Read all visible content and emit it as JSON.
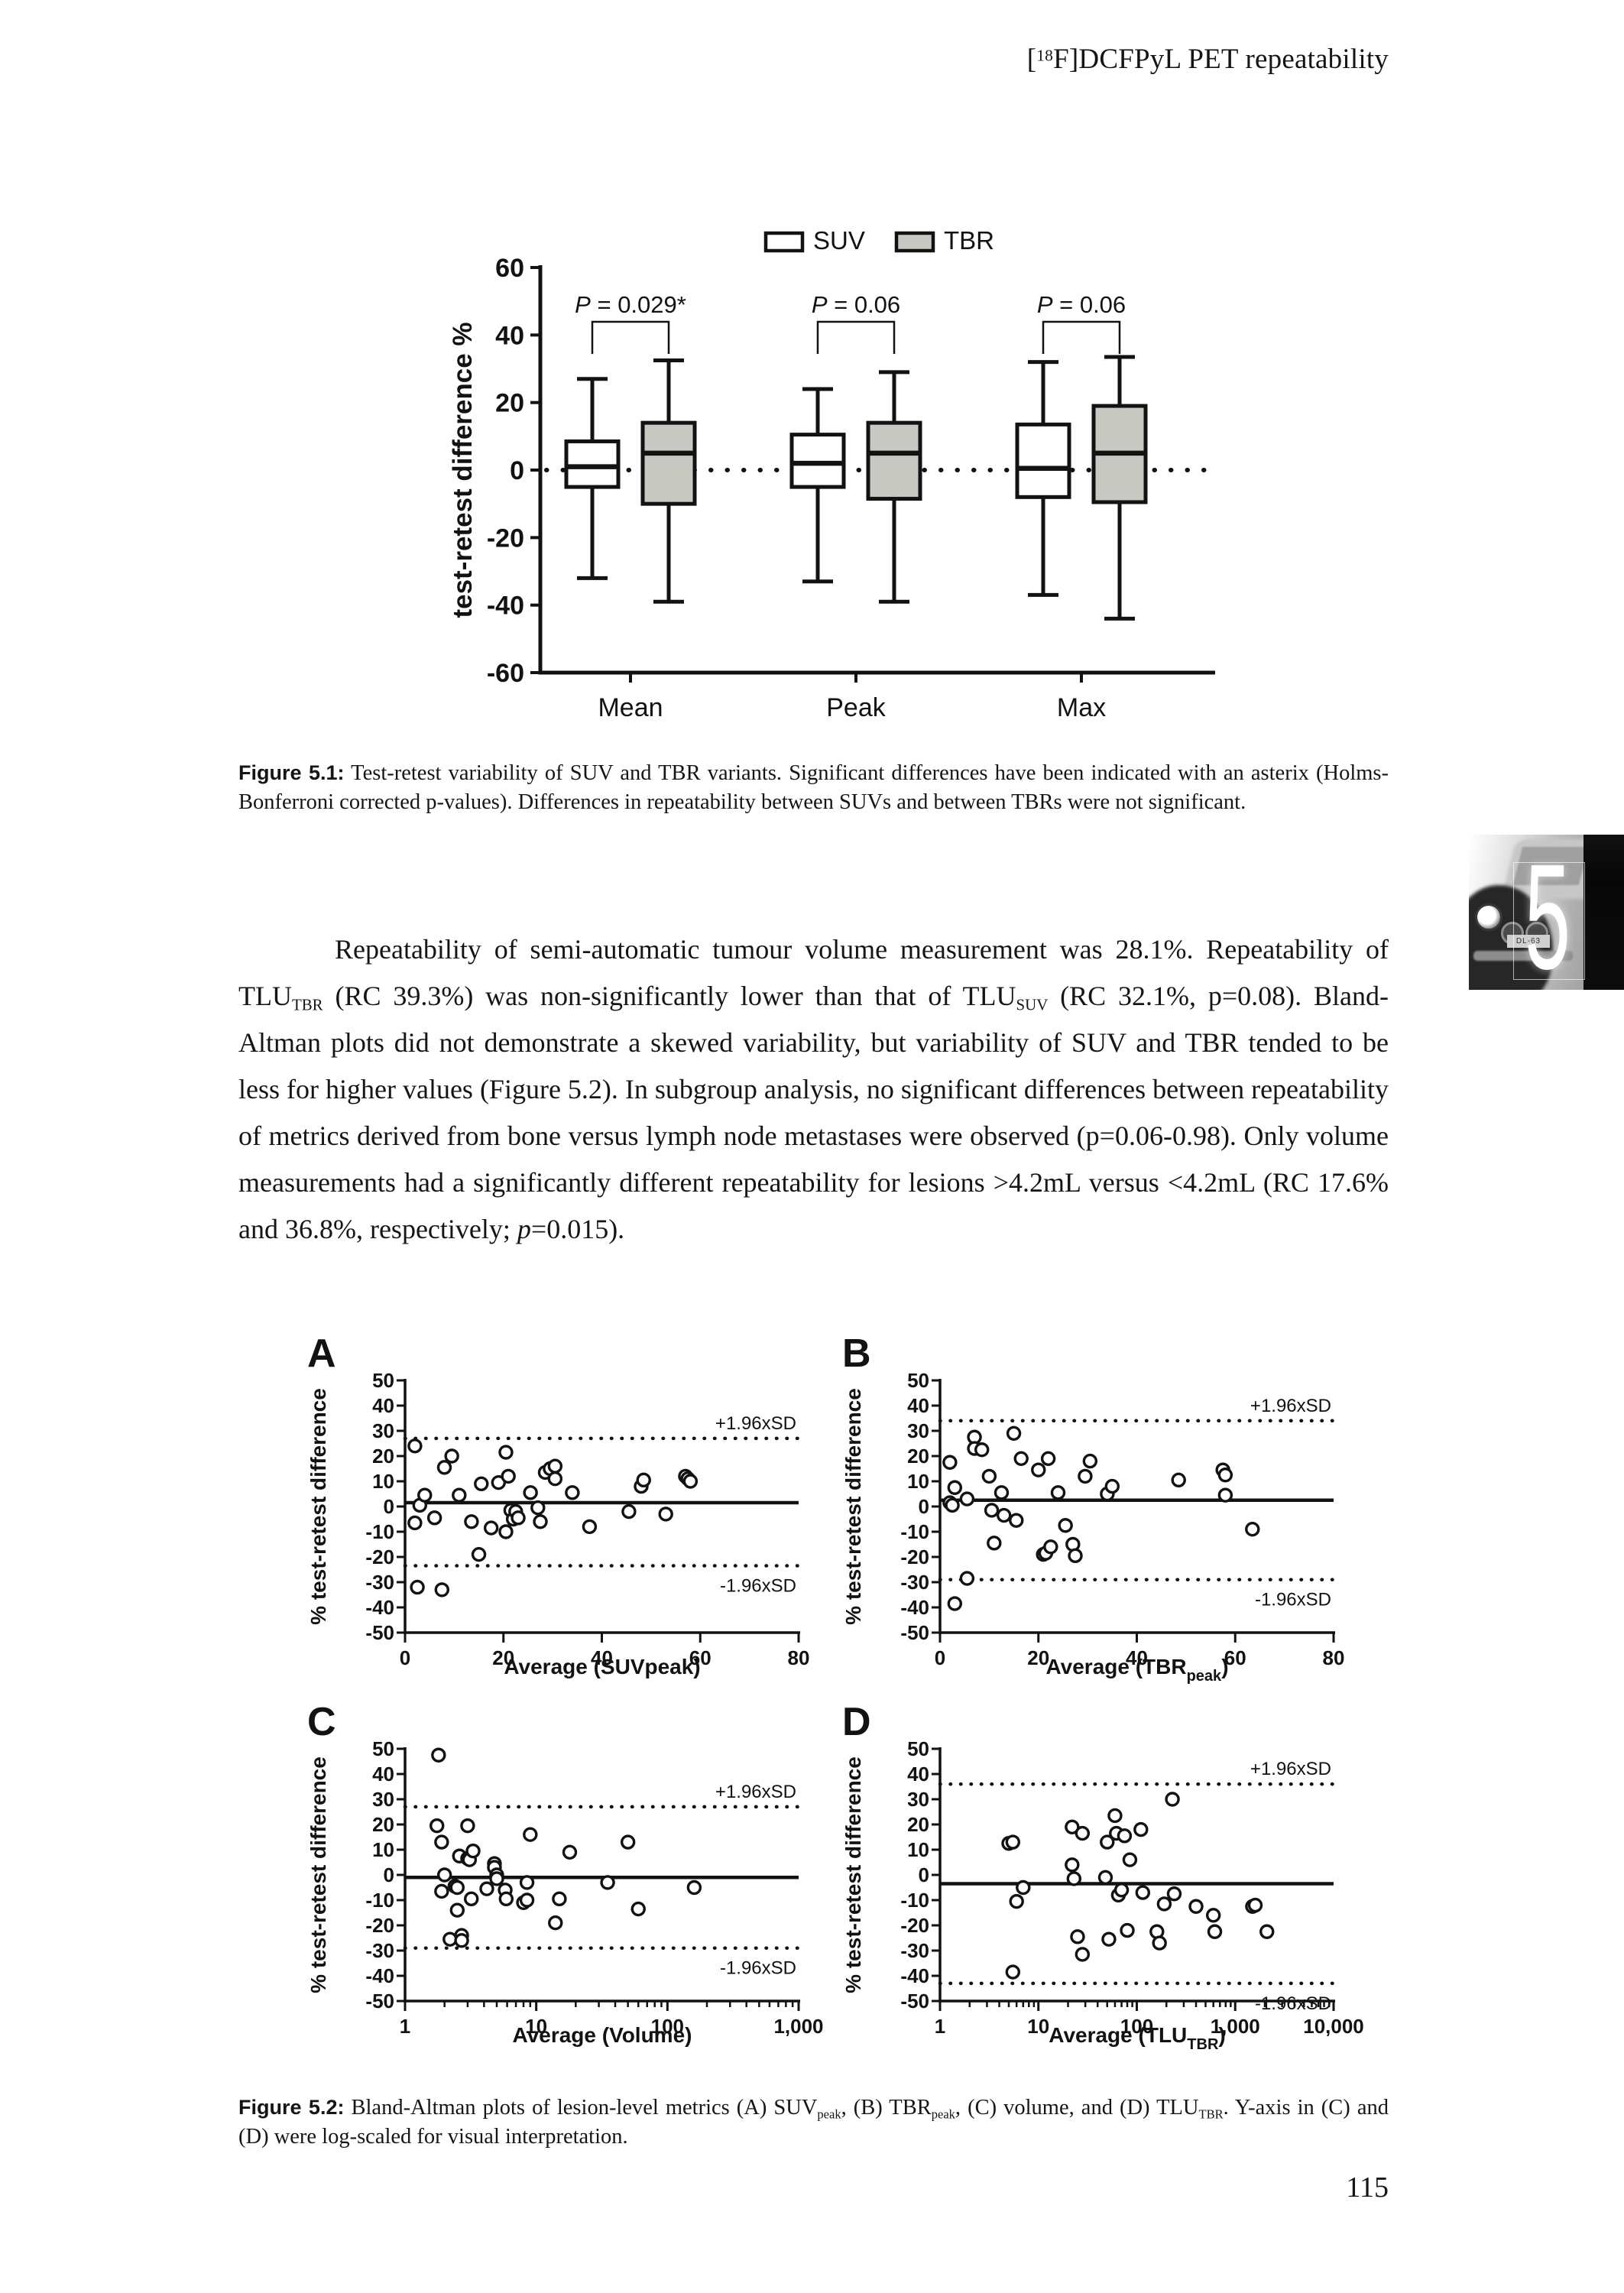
{
  "page": {
    "header_segments": [
      {
        "text": "["
      },
      {
        "text": "18",
        "sup": true
      },
      {
        "text": "F]DCFPyL PET repeatability"
      }
    ],
    "page_number": "115"
  },
  "chapter_badge": {
    "number": "5",
    "plate_text": "DL-63"
  },
  "figure_5_1": {
    "label": "Figure 5.1:",
    "caption": " Test-retest variability of SUV and TBR variants. Significant differences have been indicated with an asterix (Holms-Bonferroni corrected p-values). Differences in repeatability between SUVs and between TBRs were not significant."
  },
  "body_paragraph_segments": [
    {
      "text": "Repeatability of semi-automatic tumour volume measurement was 28.1%. Repeatability of TLU"
    },
    {
      "text": "TBR",
      "sub": true
    },
    {
      "text": " (RC 39.3%) was non-significantly lower than that of TLU"
    },
    {
      "text": "SUV",
      "sub": true
    },
    {
      "text": " (RC 32.1%, p=0.08). Bland-Altman plots did not demonstrate a skewed variability, but variability of SUV and TBR tended to be less for higher values (Figure 5.2). In subgroup analysis, no significant differences between repeatability of metrics derived from bone versus lymph node metastases were observed (p=0.06-0.98). Only volume measurements had a significantly different repeatability for lesions >4.2mL versus <4.2mL (RC 17.6% and 36.8%, respectively; "
    },
    {
      "text": "p",
      "italic": true
    },
    {
      "text": "=0.015)."
    }
  ],
  "figure_5_2": {
    "label": "Figure 5.2:",
    "caption_segments": [
      {
        "text": " Bland-Altman plots of lesion-level metrics (A) SUV"
      },
      {
        "text": "peak",
        "sub": true
      },
      {
        "text": ", (B) TBR"
      },
      {
        "text": "peak",
        "sub": true
      },
      {
        "text": ", (C) volume, and (D) TLU"
      },
      {
        "text": "TBR",
        "sub": true
      },
      {
        "text": ". Y-axis in (C) and (D) were log-scaled for visual interpretation."
      }
    ]
  },
  "chart_data": [
    {
      "id": "fig5_1",
      "type": "boxplot",
      "ylabel": "test-retest difference %",
      "ylim": [
        -60,
        60
      ],
      "yticks": [
        -60,
        -40,
        -20,
        0,
        20,
        40,
        60
      ],
      "zero_line": "dotted",
      "categories": [
        "Mean",
        "Peak",
        "Max"
      ],
      "pvalues": [
        "P = 0.029*",
        "P = 0.06",
        "P = 0.06"
      ],
      "legend": [
        {
          "label": "SUV",
          "fill": "#ffffff"
        },
        {
          "label": "TBR",
          "fill": "#c9c9c4"
        }
      ],
      "series": [
        {
          "name": "SUV",
          "fill": "#ffffff",
          "boxes": [
            {
              "low": -32,
              "q1": -5,
              "median": 1,
              "q3": 8.5,
              "high": 27
            },
            {
              "low": -33,
              "q1": -5,
              "median": 2,
              "q3": 10.5,
              "high": 24
            },
            {
              "low": -37,
              "q1": -8,
              "median": 0.5,
              "q3": 13.5,
              "high": 32
            }
          ]
        },
        {
          "name": "TBR",
          "fill": "#c9c9c4",
          "boxes": [
            {
              "low": -39,
              "q1": -10,
              "median": 5,
              "q3": 14,
              "high": 32.5
            },
            {
              "low": -39,
              "q1": -8.5,
              "median": 5,
              "q3": 14,
              "high": 29
            },
            {
              "low": -44,
              "q1": -9.5,
              "median": 5,
              "q3": 19,
              "high": 33.5
            }
          ]
        }
      ]
    },
    {
      "id": "A",
      "type": "scatter",
      "xscale": "linear",
      "xlim": [
        0,
        80
      ],
      "xticks": [
        0,
        20,
        40,
        60,
        80
      ],
      "xtick_labels": [
        "0",
        "20",
        "40",
        "60",
        "80"
      ],
      "xlabel_parts": [
        {
          "text": "Average (SUVpeak)"
        }
      ],
      "ylabel": "% test-retest difference",
      "ylim": [
        -50,
        50
      ],
      "ytick_step": 10,
      "mean": 1.5,
      "upper": 27,
      "lower": -23.5,
      "upper_label": "+1.96xSD",
      "lower_label": "-1.96xSD",
      "points": [
        [
          2,
          24
        ],
        [
          3,
          0.5
        ],
        [
          2,
          -6.5
        ],
        [
          4,
          4.5
        ],
        [
          6,
          -4.5
        ],
        [
          2.5,
          -32
        ],
        [
          7.5,
          -33
        ],
        [
          8,
          15.5
        ],
        [
          9.5,
          20
        ],
        [
          11,
          4.5
        ],
        [
          13.5,
          -6
        ],
        [
          15,
          -19
        ],
        [
          15.5,
          9
        ],
        [
          17.5,
          -8.5
        ],
        [
          19,
          9.5
        ],
        [
          20.5,
          21.5
        ],
        [
          20.5,
          -10
        ],
        [
          21,
          12
        ],
        [
          21.5,
          -1.5
        ],
        [
          22,
          -5
        ],
        [
          22.5,
          -2
        ],
        [
          23,
          -4.5
        ],
        [
          25.5,
          5.5
        ],
        [
          27,
          -0.5
        ],
        [
          27.5,
          -6
        ],
        [
          28.5,
          13.5
        ],
        [
          29.5,
          15
        ],
        [
          30.5,
          16
        ],
        [
          30.5,
          11
        ],
        [
          34,
          5.5
        ],
        [
          37.5,
          -8
        ],
        [
          45.5,
          -2
        ],
        [
          48,
          8
        ],
        [
          48.5,
          10.5
        ],
        [
          53,
          -3
        ],
        [
          57,
          12
        ],
        [
          57.5,
          11
        ],
        [
          58,
          10
        ]
      ]
    },
    {
      "id": "B",
      "type": "scatter",
      "xscale": "linear",
      "xlim": [
        0,
        80
      ],
      "xticks": [
        0,
        20,
        40,
        60,
        80
      ],
      "xtick_labels": [
        "0",
        "20",
        "40",
        "60",
        "80"
      ],
      "xlabel_parts": [
        {
          "text": "Average (TBR"
        },
        {
          "text": "peak",
          "sub": true
        },
        {
          "text": ")"
        }
      ],
      "ylabel": "% test-retest difference",
      "ylim": [
        -50,
        50
      ],
      "ytick_step": 10,
      "mean": 2.5,
      "upper": 34,
      "lower": -29,
      "upper_label": "+1.96xSD",
      "lower_label": "-1.96xSD",
      "points": [
        [
          2,
          17.5
        ],
        [
          2,
          1.5
        ],
        [
          2.5,
          0.5
        ],
        [
          3,
          7.5
        ],
        [
          3,
          -38.5
        ],
        [
          5.5,
          3
        ],
        [
          5.5,
          -28.5
        ],
        [
          7,
          27.5
        ],
        [
          7,
          23
        ],
        [
          8.5,
          22.5
        ],
        [
          10,
          12
        ],
        [
          10.5,
          -1.5
        ],
        [
          11,
          -14.5
        ],
        [
          12.5,
          5.5
        ],
        [
          13,
          -3.5
        ],
        [
          15,
          29
        ],
        [
          15.5,
          -5.5
        ],
        [
          16.5,
          19
        ],
        [
          20,
          14.5
        ],
        [
          21,
          -19
        ],
        [
          21.5,
          -18.5
        ],
        [
          22,
          19
        ],
        [
          22.5,
          -16
        ],
        [
          24,
          5.5
        ],
        [
          25.5,
          -7.5
        ],
        [
          27,
          -15
        ],
        [
          27.5,
          -19.5
        ],
        [
          29.5,
          12
        ],
        [
          30.5,
          18
        ],
        [
          34,
          5
        ],
        [
          35,
          8
        ],
        [
          48.5,
          10.5
        ],
        [
          57.5,
          14.5
        ],
        [
          58,
          12.5
        ],
        [
          58,
          4.5
        ],
        [
          63.5,
          -9
        ]
      ]
    },
    {
      "id": "C",
      "type": "scatter",
      "xscale": "log",
      "xlim": [
        1,
        1000
      ],
      "xticks": [
        1,
        10,
        100,
        1000
      ],
      "xtick_labels": [
        "1",
        "10",
        "100",
        "1,000"
      ],
      "xlabel_parts": [
        {
          "text": "Average (Volume)"
        }
      ],
      "ylabel": "% test-retest difference",
      "ylim": [
        -50,
        50
      ],
      "ytick_step": 10,
      "mean": -1,
      "upper": 27,
      "lower": -29,
      "upper_label": "+1.96xSD",
      "lower_label": "-1.96xSD",
      "points": [
        [
          1.8,
          47.5
        ],
        [
          1.75,
          19.5
        ],
        [
          1.9,
          13
        ],
        [
          2,
          0
        ],
        [
          1.9,
          -6.5
        ],
        [
          2.2,
          -25.5
        ],
        [
          2.4,
          -4.5
        ],
        [
          2.5,
          -5
        ],
        [
          2.5,
          -14
        ],
        [
          2.6,
          7.5
        ],
        [
          2.7,
          -24
        ],
        [
          2.7,
          -26
        ],
        [
          3,
          19.5
        ],
        [
          3,
          6.5
        ],
        [
          3.1,
          6
        ],
        [
          3.3,
          9.5
        ],
        [
          3.2,
          -9.5
        ],
        [
          4.2,
          -5.5
        ],
        [
          4.8,
          4.5
        ],
        [
          4.8,
          3
        ],
        [
          5,
          0
        ],
        [
          5,
          -1.5
        ],
        [
          5.8,
          -6
        ],
        [
          5.9,
          -9.5
        ],
        [
          8,
          -11
        ],
        [
          8.5,
          -3
        ],
        [
          8.5,
          -10
        ],
        [
          9,
          16
        ],
        [
          14,
          -19
        ],
        [
          15,
          -9.5
        ],
        [
          18,
          9
        ],
        [
          35,
          -3
        ],
        [
          50,
          13
        ],
        [
          60,
          -13.5
        ],
        [
          160,
          -5
        ]
      ]
    },
    {
      "id": "D",
      "type": "scatter",
      "xscale": "log",
      "xlim": [
        1,
        10000
      ],
      "xticks": [
        1,
        10,
        100,
        1000,
        10000
      ],
      "xtick_labels": [
        "1",
        "10",
        "100",
        "1,000",
        "10,000"
      ],
      "xlabel_parts": [
        {
          "text": "Average (TLU"
        },
        {
          "text": "TBR",
          "sub": true
        },
        {
          "text": ")"
        }
      ],
      "ylabel": "% test-retest difference",
      "ylim": [
        -50,
        50
      ],
      "ytick_step": 10,
      "mean": -3.5,
      "upper": 36,
      "lower": -43,
      "upper_label": "+1.96xSD",
      "lower_label": "-1.96xSD",
      "points": [
        [
          5,
          12.5
        ],
        [
          5.5,
          13
        ],
        [
          5.5,
          -38.5
        ],
        [
          6,
          -10.5
        ],
        [
          7,
          -5
        ],
        [
          22,
          19
        ],
        [
          22,
          4
        ],
        [
          23,
          -1.5
        ],
        [
          25,
          -24.5
        ],
        [
          28,
          16.5
        ],
        [
          28,
          -31.5
        ],
        [
          48,
          -1
        ],
        [
          50,
          13
        ],
        [
          52,
          -25.5
        ],
        [
          60,
          23.5
        ],
        [
          62,
          16.5
        ],
        [
          65,
          -8
        ],
        [
          70,
          -6
        ],
        [
          75,
          15.5
        ],
        [
          80,
          -22
        ],
        [
          85,
          6
        ],
        [
          110,
          18
        ],
        [
          115,
          -7
        ],
        [
          160,
          -22.5
        ],
        [
          170,
          -27
        ],
        [
          190,
          -11.5
        ],
        [
          230,
          30
        ],
        [
          240,
          -7.5
        ],
        [
          400,
          -12.5
        ],
        [
          600,
          -16
        ],
        [
          620,
          -22.5
        ],
        [
          1500,
          -12.5
        ],
        [
          1600,
          -12
        ],
        [
          2100,
          -22.5
        ]
      ]
    }
  ]
}
